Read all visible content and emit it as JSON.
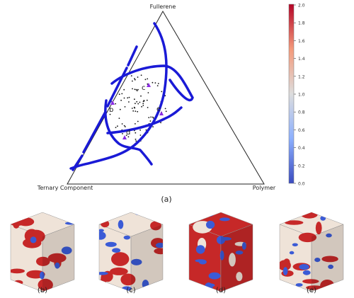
{
  "ternary": {
    "vertices": {
      "top": "Fullerene",
      "left": "Ternary Component",
      "right": "Polymer"
    },
    "point_labels": [
      "b",
      "c",
      "d",
      "e"
    ],
    "caption": "(a)"
  },
  "colorbar": {
    "colormap": "coolwarm",
    "ticks": [
      "2.0",
      "1.8",
      "1.6",
      "1.4",
      "1.2",
      "1.0",
      "0.8",
      "0.6",
      "0.4",
      "0.2",
      "0.0"
    ]
  },
  "cubes": [
    {
      "caption": "(b)"
    },
    {
      "caption": "(c)"
    },
    {
      "caption": "(d)"
    },
    {
      "caption": "(e)"
    }
  ],
  "colors": {
    "curve": "#1a1ad6",
    "marker": "#8a2be2",
    "red": "#c62828",
    "blue": "#3b5bd6",
    "beige": "#efe3d8"
  }
}
